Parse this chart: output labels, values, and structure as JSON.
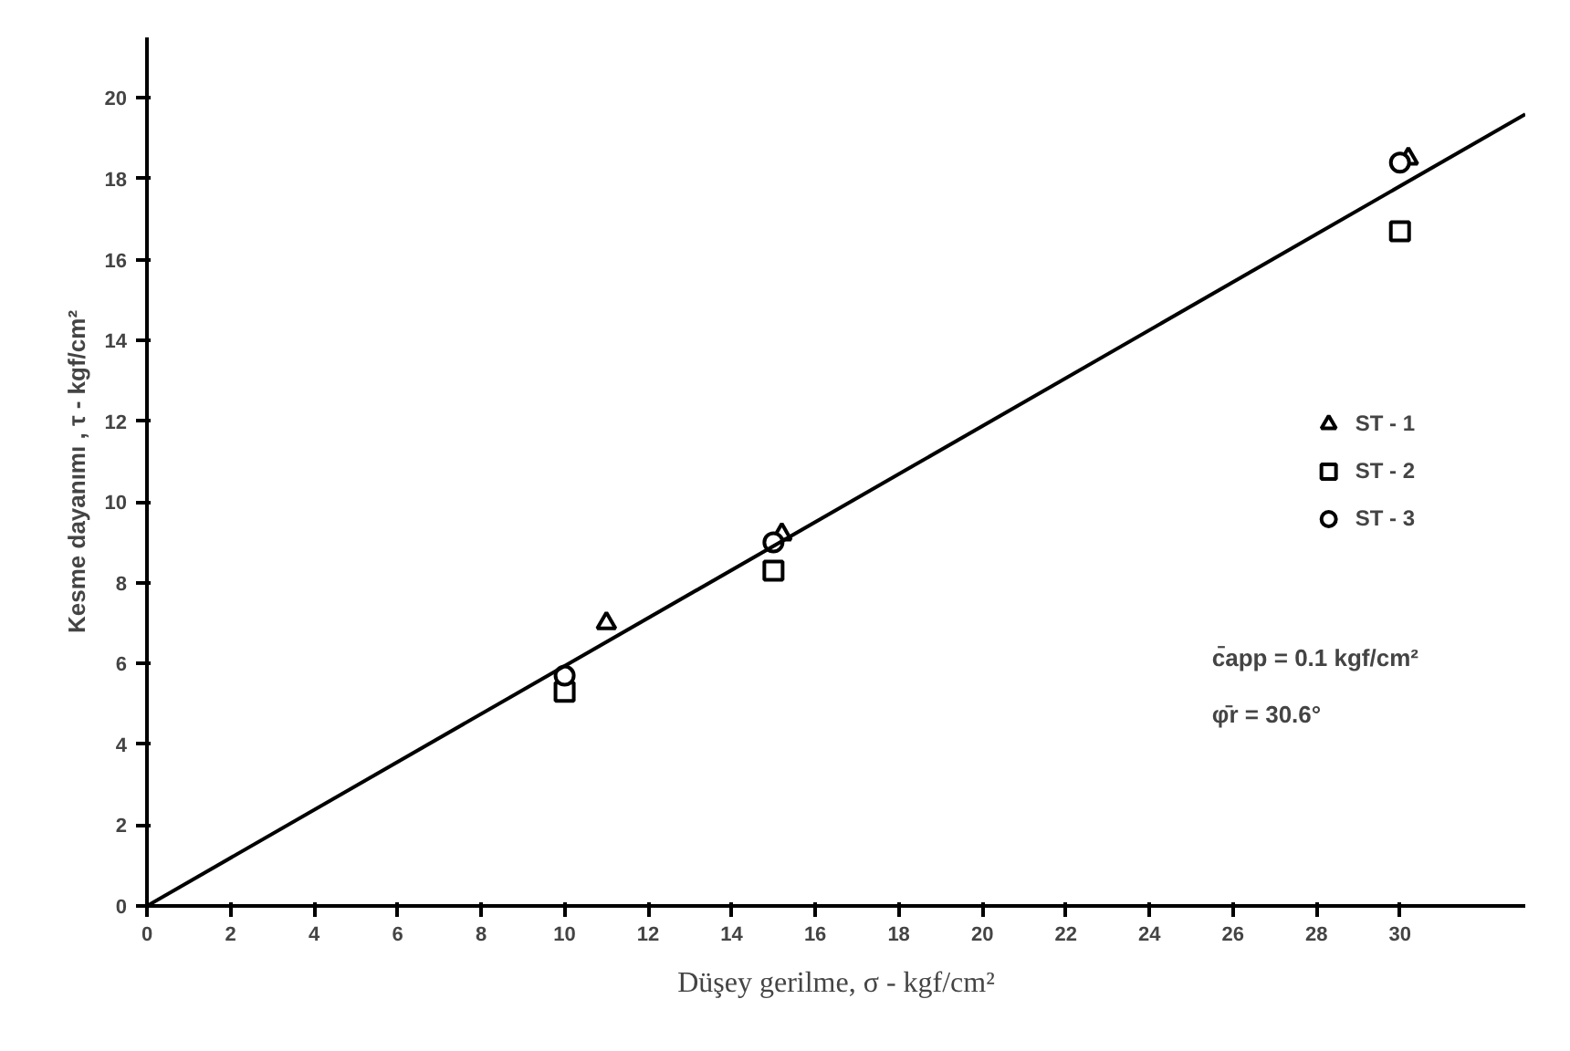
{
  "chart_data": {
    "type": "scatter",
    "xlabel": "Düşey gerilme, σ - kgf/cm²",
    "ylabel": "Kesme dayanımı , τ - kgf/cm²",
    "xlim": [
      0,
      33
    ],
    "ylim": [
      0,
      21.5
    ],
    "xticks": [
      0,
      2,
      4,
      6,
      8,
      10,
      12,
      14,
      16,
      18,
      20,
      22,
      24,
      26,
      28,
      30
    ],
    "yticks": [
      0,
      2,
      4,
      6,
      8,
      10,
      12,
      14,
      16,
      18,
      20
    ],
    "grid": false,
    "legend": "right",
    "series": [
      {
        "name": "ST - 1",
        "color": "#000000",
        "marker": "triangle",
        "x": [
          11,
          15.2,
          30.2
        ],
        "values": [
          7.0,
          9.2,
          18.5
        ]
      },
      {
        "name": "ST - 2",
        "color": "#000000",
        "marker": "square",
        "x": [
          10,
          15,
          30
        ],
        "values": [
          5.3,
          8.3,
          16.7
        ]
      },
      {
        "name": "ST - 3",
        "color": "#000000",
        "marker": "circle",
        "x": [
          10,
          15,
          30
        ],
        "values": [
          5.7,
          9.0,
          18.4
        ]
      },
      {
        "type": "line",
        "color": "#000000",
        "marker": "none",
        "x": [
          0,
          33
        ],
        "values": [
          0,
          19.6
        ]
      }
    ],
    "annotations": [
      "c̄app = 0.1 kgf/cm²",
      "φ̄r = 30.6°"
    ]
  }
}
